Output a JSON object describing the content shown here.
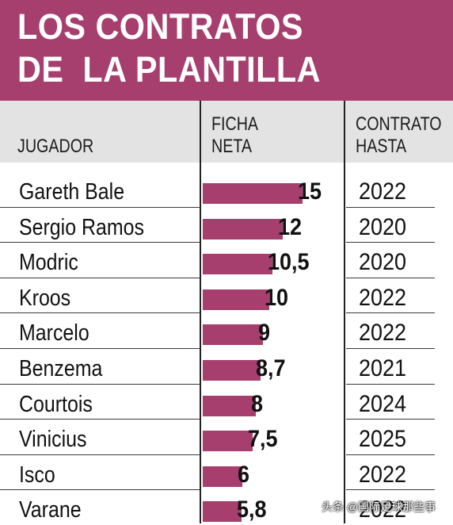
{
  "title": {
    "line1": "LOS CONTRATOS",
    "line2": "DE  LA PLANTILLA"
  },
  "headers": {
    "player": "JUGADOR",
    "salary_line1": "FICHA",
    "salary_line2": "NETA",
    "contract_line1": "CONTRATO",
    "contract_line2": "HASTA"
  },
  "colors": {
    "accent": "#a63e6e",
    "header_bg": "#e3e3e3"
  },
  "watermark": "头条 @国际足球那些事",
  "chart_data": {
    "type": "bar",
    "orientation": "horizontal",
    "categories": [
      "Gareth Bale",
      "Sergio Ramos",
      "Modric",
      "Kroos",
      "Marcelo",
      "Benzema",
      "Courtois",
      "Vinicius",
      "Isco",
      "Varane"
    ],
    "values": [
      15,
      12,
      10.5,
      10,
      9,
      8.7,
      8,
      7.5,
      6,
      5.8
    ],
    "value_labels": [
      "15",
      "12",
      "10,5",
      "10",
      "9",
      "8,7",
      "8",
      "7,5",
      "6",
      "5,8"
    ],
    "contract_until": [
      "2022",
      "2020",
      "2020",
      "2022",
      "2022",
      "2021",
      "2024",
      "2025",
      "2022",
      "2022"
    ],
    "title": "LOS CONTRATOS DE  LA PLANTILLA",
    "xlabel": "FICHA NETA",
    "ylabel": "JUGADOR",
    "grid": false
  }
}
